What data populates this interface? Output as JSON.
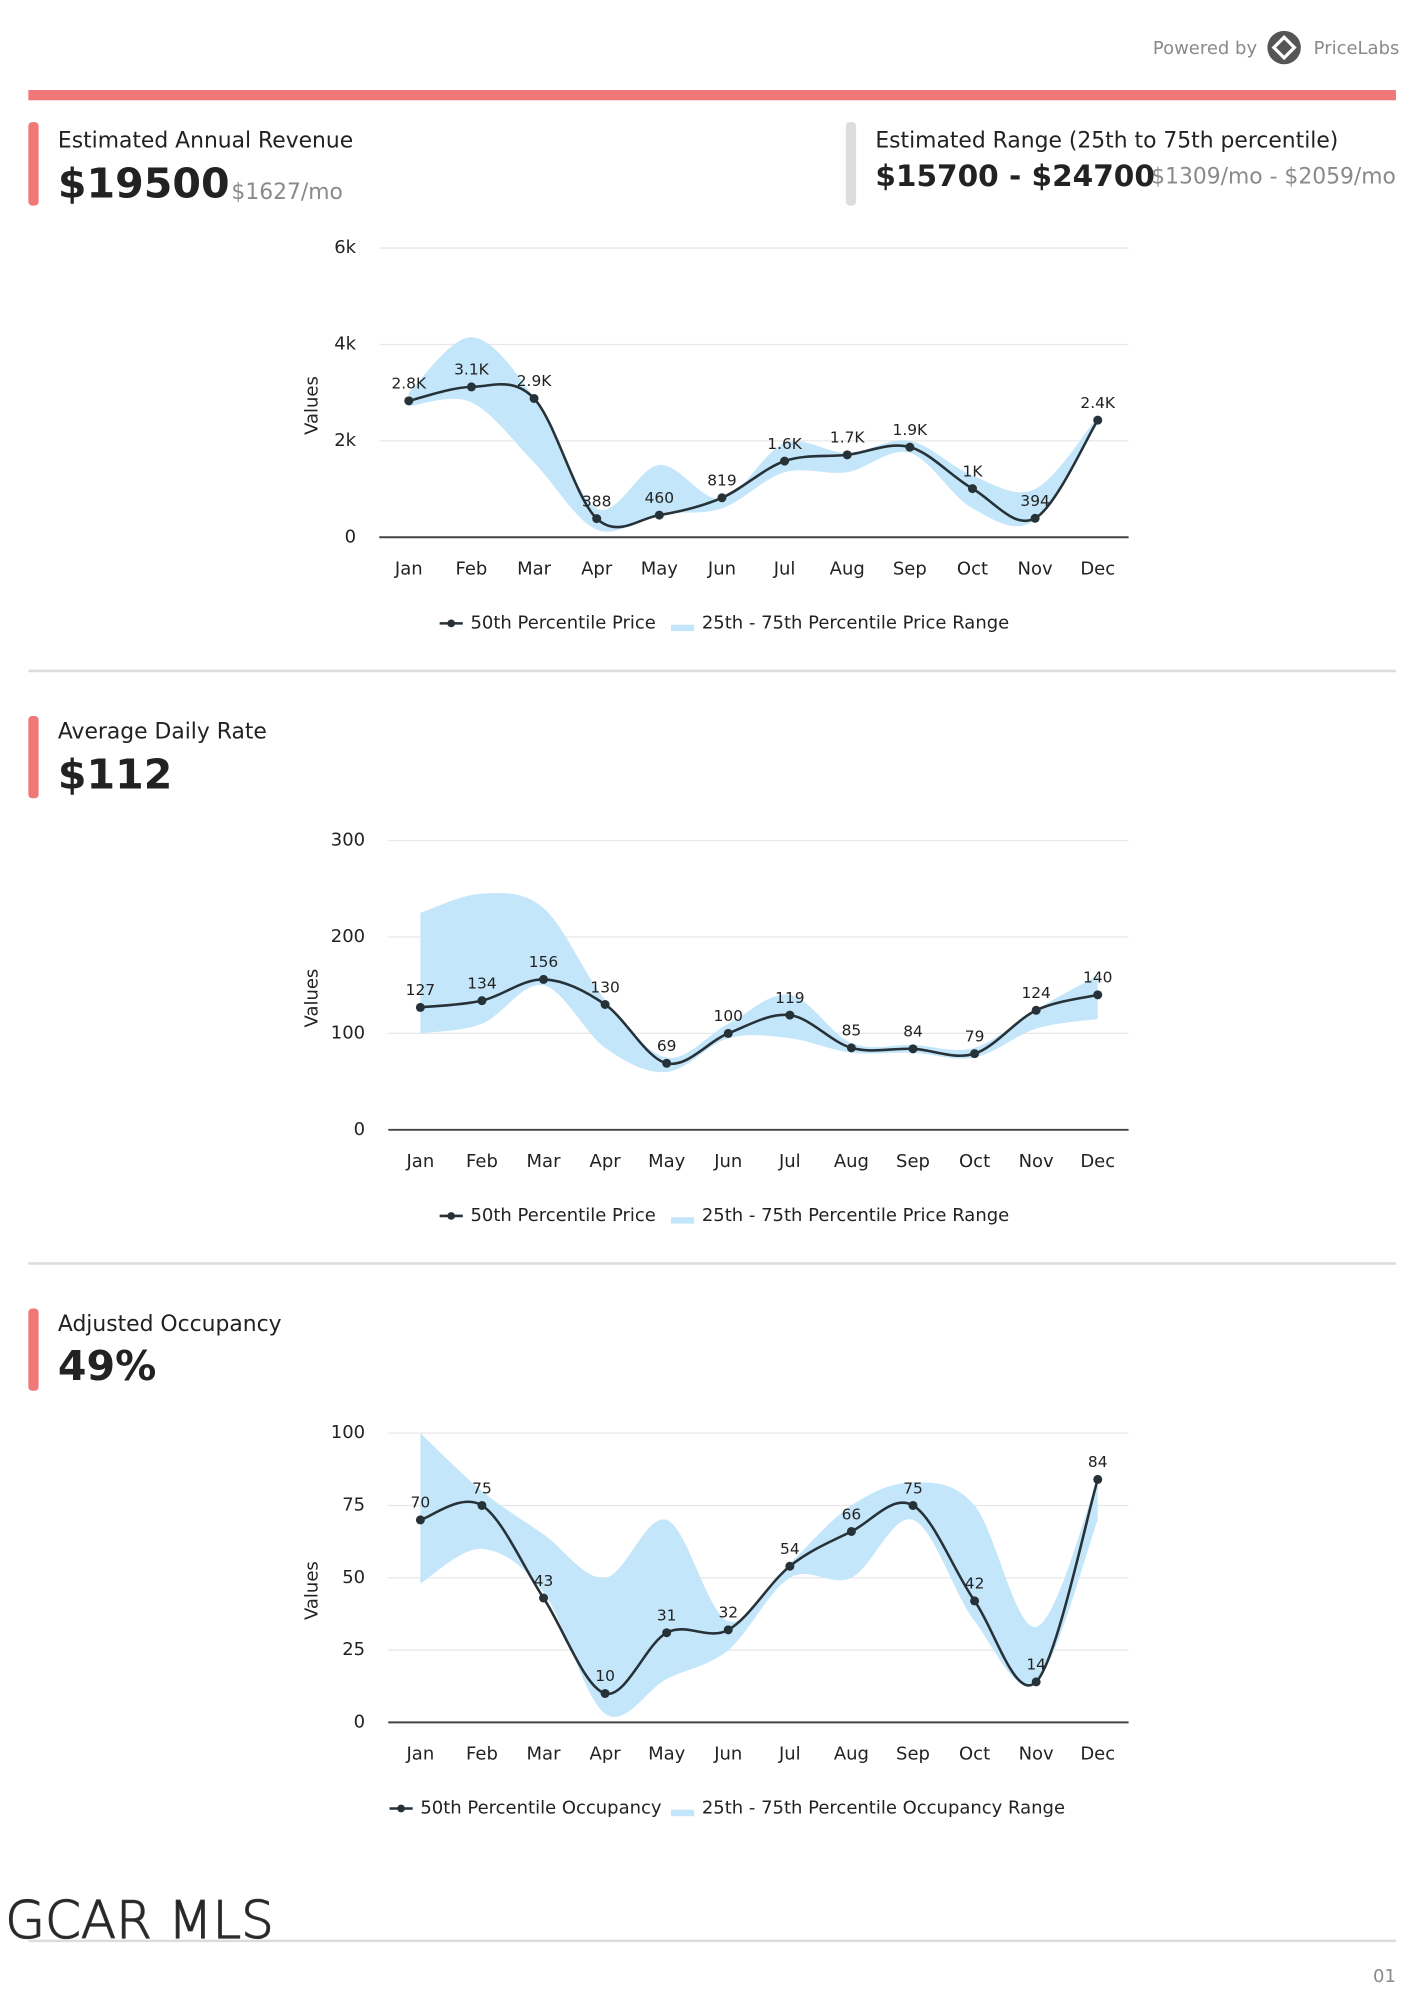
{
  "header": {
    "powered_by": "Powered by",
    "brand": "PriceLabs"
  },
  "sections": [
    {
      "title": "Estimated Annual Revenue",
      "value": "$19500",
      "sub": "$1627/mo"
    },
    {
      "title": "Estimated Range (25th to 75th percentile)",
      "value": "$15700 - $24700",
      "sub": "$1309/mo - $2059/mo"
    },
    {
      "title": "Average Daily Rate",
      "value": "$112"
    },
    {
      "title": "Adjusted Occupancy",
      "value": "49%"
    }
  ],
  "chart_data": [
    {
      "type": "line",
      "y_label": "Values",
      "categories": [
        "Jan",
        "Feb",
        "Mar",
        "Apr",
        "May",
        "Jun",
        "Jul",
        "Aug",
        "Sep",
        "Oct",
        "Nov",
        "Dec"
      ],
      "series": [
        {
          "name": "50th Percentile Price",
          "color": "#263238",
          "values": [
            2830,
            3120,
            2880,
            388,
            460,
            819,
            1580,
            1710,
            1870,
            1010,
            394,
            2430
          ],
          "value_labels": [
            "2.8K",
            "3.1K",
            "2.9K",
            "388",
            "460",
            "819",
            "1.6K",
            "1.7K",
            "1.9K",
            "1K",
            "394",
            "2.4K"
          ]
        },
        {
          "name": "25th - 75th Percentile Price Range",
          "color": "#c4e6fa",
          "low": [
            2720,
            2800,
            1550,
            160,
            480,
            600,
            1350,
            1350,
            1750,
            600,
            350,
            2400
          ],
          "high": [
            3000,
            4150,
            2900,
            600,
            1500,
            800,
            1950,
            1750,
            2000,
            1280,
            1000,
            2500
          ]
        }
      ],
      "ylim": [
        0,
        6000
      ],
      "yticks": [
        0,
        {
          "value": 2000,
          "label": "2k"
        },
        {
          "value": 4000,
          "label": "4k"
        },
        {
          "value": 6000,
          "label": "6k"
        }
      ],
      "grid": true,
      "legend": "bottom"
    },
    {
      "type": "line",
      "y_label": "Values",
      "categories": [
        "Jan",
        "Feb",
        "Mar",
        "Apr",
        "May",
        "Jun",
        "Jul",
        "Aug",
        "Sep",
        "Oct",
        "Nov",
        "Dec"
      ],
      "series": [
        {
          "name": "50th Percentile Price",
          "color": "#263238",
          "values": [
            127,
            134,
            156,
            130,
            69,
            100,
            119,
            85,
            84,
            79,
            124,
            140
          ]
        },
        {
          "name": "25th - 75th Percentile Price Range",
          "color": "#c4e6fa",
          "low": [
            100,
            110,
            150,
            85,
            60,
            95,
            95,
            80,
            80,
            75,
            105,
            115
          ],
          "high": [
            225,
            245,
            230,
            135,
            75,
            110,
            140,
            90,
            88,
            85,
            125,
            160
          ]
        }
      ],
      "ylim": [
        0,
        300
      ],
      "yticks": [
        0,
        100,
        200,
        300
      ],
      "grid": true,
      "legend": "bottom"
    },
    {
      "type": "line",
      "y_label": "Values",
      "categories": [
        "Jan",
        "Feb",
        "Mar",
        "Apr",
        "May",
        "Jun",
        "Jul",
        "Aug",
        "Sep",
        "Oct",
        "Nov",
        "Dec"
      ],
      "series": [
        {
          "name": "50th Percentile Occupancy",
          "color": "#263238",
          "values": [
            70,
            75,
            43,
            10,
            31,
            32,
            54,
            66,
            75,
            42,
            14,
            84
          ]
        },
        {
          "name": "25th - 75th Percentile Occupancy Range",
          "color": "#c4e6fa",
          "low": [
            48,
            60,
            45,
            3,
            15,
            25,
            50,
            50,
            70,
            35,
            14,
            70
          ],
          "high": [
            100,
            80,
            65,
            50,
            70,
            35,
            55,
            75,
            83,
            75,
            33,
            84
          ]
        }
      ],
      "ylim": [
        0,
        100
      ],
      "yticks": [
        0,
        25,
        50,
        75,
        100
      ],
      "grid": true,
      "legend": "bottom"
    }
  ],
  "footer": {
    "brand": "GCAR MLS",
    "page": "01"
  }
}
